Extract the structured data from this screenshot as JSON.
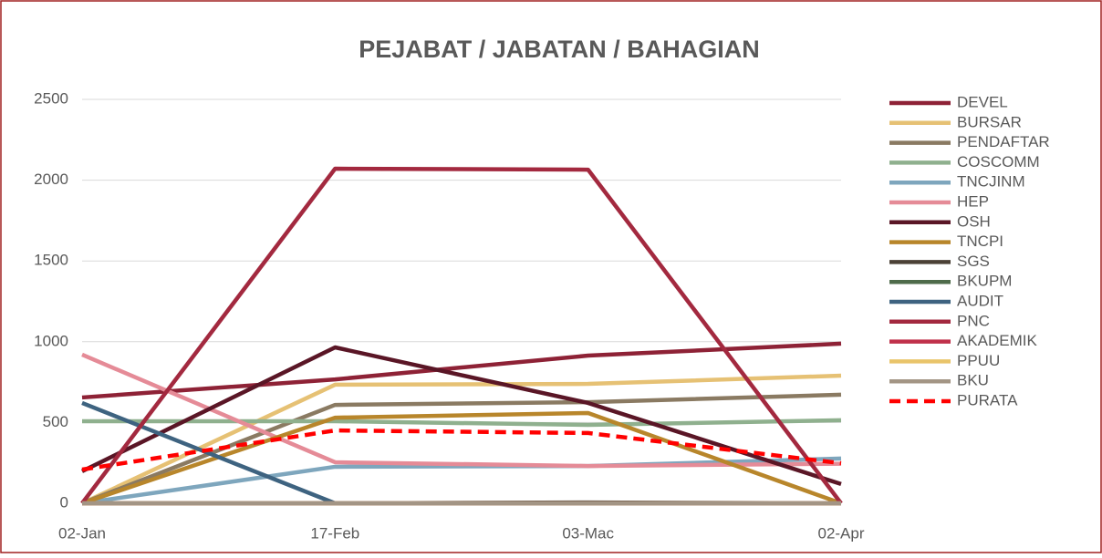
{
  "chart_data": {
    "type": "line",
    "title": "PEJABAT / JABATAN / BAHAGIAN",
    "categories": [
      "02-Jan",
      "17-Feb",
      "03-Mac",
      "02-Apr"
    ],
    "ylim": [
      0,
      2500
    ],
    "yticks": [
      0,
      500,
      1000,
      1500,
      2000,
      2500
    ],
    "grid": true,
    "legend": "right",
    "series": [
      {
        "name": "DEVEL",
        "color": "#8e2236",
        "values": [
          655,
          767,
          914,
          988
        ]
      },
      {
        "name": "BURSAR",
        "color": "#e6c174",
        "values": [
          0,
          734,
          739,
          790
        ]
      },
      {
        "name": "PENDAFTAR",
        "color": "#8a7a62",
        "values": [
          0,
          609,
          626,
          672
        ]
      },
      {
        "name": "COSCOMM",
        "color": "#8fb08e",
        "values": [
          508,
          508,
          485,
          514
        ]
      },
      {
        "name": "TNCJINM",
        "color": "#7ea6bd",
        "values": [
          0,
          226,
          231,
          277
        ]
      },
      {
        "name": "HEP",
        "color": "#e58b97",
        "values": [
          920,
          254,
          231,
          245
        ]
      },
      {
        "name": "OSH",
        "color": "#5a1626",
        "values": [
          198,
          965,
          621,
          119
        ]
      },
      {
        "name": "TNCPI",
        "color": "#b8862b",
        "values": [
          0,
          530,
          559,
          0
        ]
      },
      {
        "name": "SGS",
        "color": "#4b4136",
        "values": [
          0,
          0,
          5,
          0
        ]
      },
      {
        "name": "BKUPM",
        "color": "#4e6b4a",
        "values": [
          0,
          0,
          0,
          0
        ]
      },
      {
        "name": "AUDIT",
        "color": "#3e6380",
        "values": [
          621,
          0,
          0,
          0
        ]
      },
      {
        "name": "PNC",
        "color": "#a3293f",
        "values": [
          0,
          2071,
          2065,
          0
        ]
      },
      {
        "name": "AKADEMIK",
        "color": "#c0304a",
        "values": [
          0,
          0,
          0,
          0
        ]
      },
      {
        "name": "PPUU",
        "color": "#e9c46a",
        "values": [
          0,
          0,
          0,
          0
        ]
      },
      {
        "name": "BKU",
        "color": "#a39585",
        "values": [
          0,
          0,
          0,
          0
        ]
      },
      {
        "name": "PURATA",
        "color": "#ff0000",
        "dash": true,
        "values": [
          209,
          451,
          435,
          248
        ]
      }
    ]
  }
}
